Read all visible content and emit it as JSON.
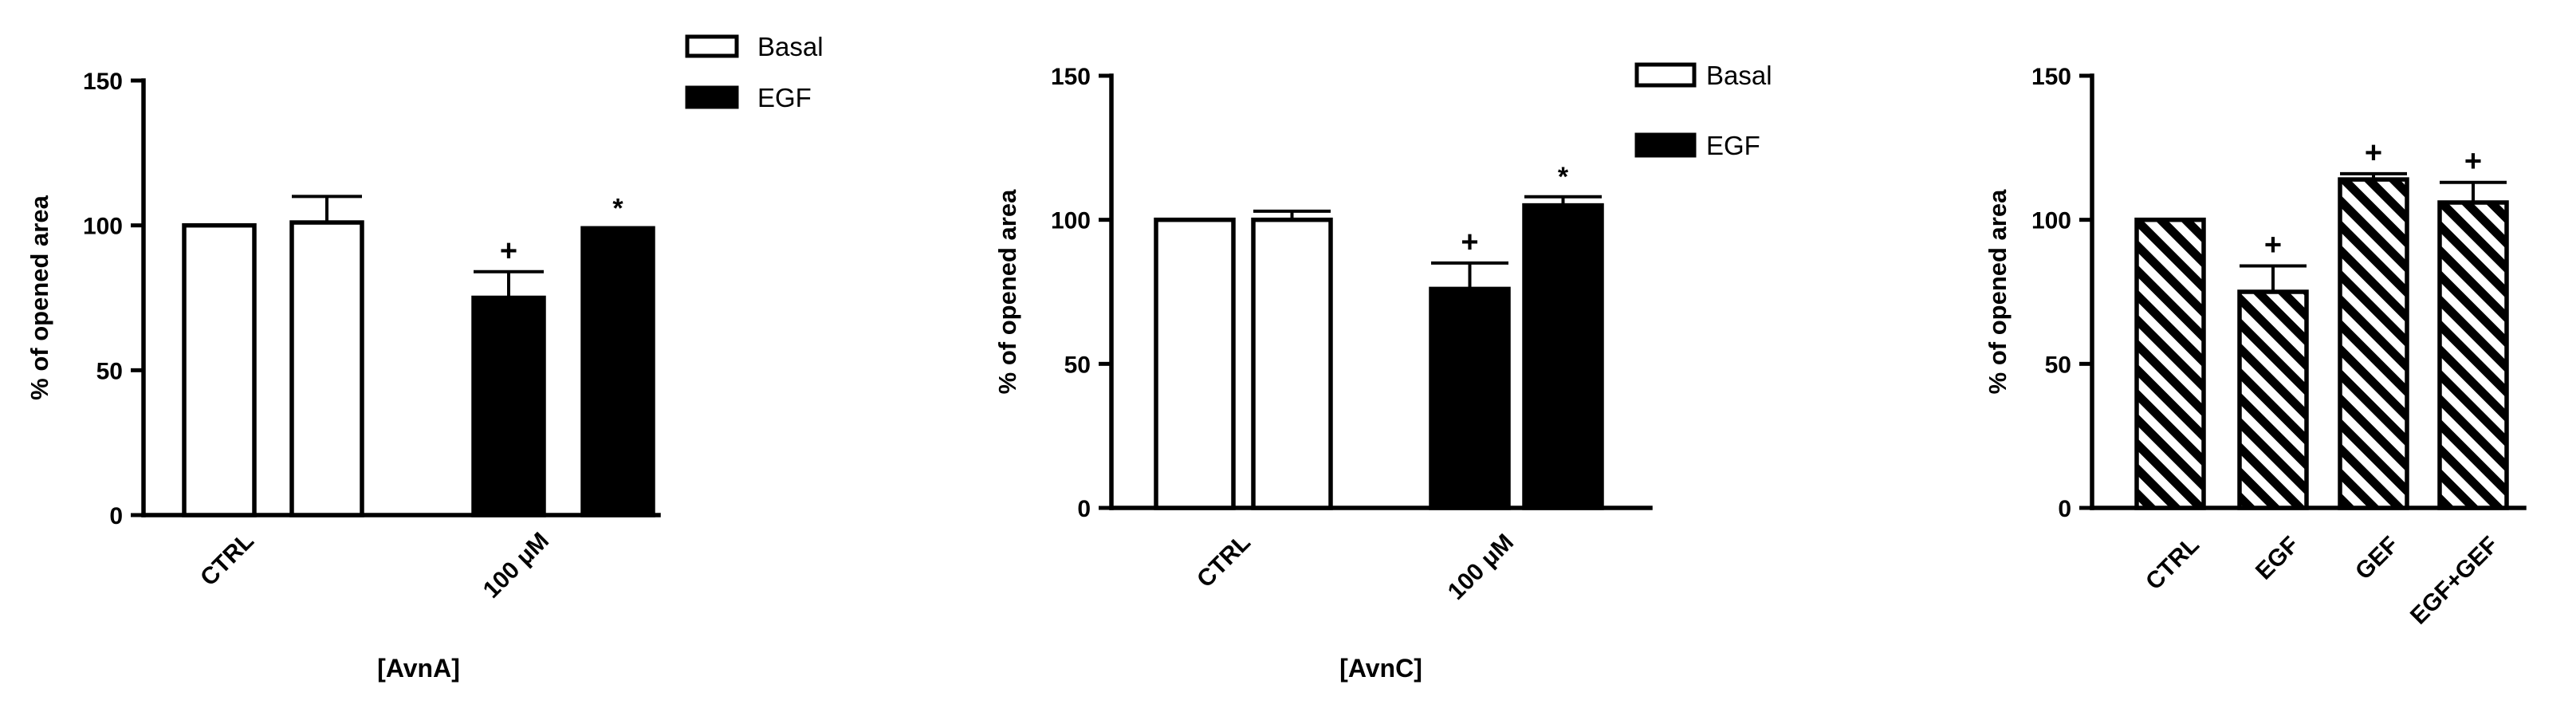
{
  "colors": {
    "fill_black": "#000000",
    "fill_white": "#ffffff"
  },
  "chart_data": [
    {
      "type": "bar",
      "ylabel": "% of opened area",
      "xlabel": "[AvnA]",
      "ylim": [
        0,
        150
      ],
      "yticks": [
        0,
        50,
        100,
        150
      ],
      "categories": [
        "CTRL",
        "100 μM"
      ],
      "series": [
        {
          "name": "Basal",
          "fill": "white",
          "values": [
            100,
            101
          ],
          "errors": [
            0,
            9
          ],
          "annotations": [
            "",
            ""
          ]
        },
        {
          "name": "EGF",
          "fill": "black",
          "values": [
            75,
            99
          ],
          "errors": [
            9,
            0.5
          ],
          "annotations": [
            "+",
            "*"
          ]
        }
      ],
      "legend": "top-right"
    },
    {
      "type": "bar",
      "ylabel": "% of opened area",
      "xlabel": "[AvnC]",
      "ylim": [
        0,
        150
      ],
      "yticks": [
        0,
        50,
        100,
        150
      ],
      "categories": [
        "CTRL",
        "100 μM"
      ],
      "series": [
        {
          "name": "Basal",
          "fill": "white",
          "values": [
            100,
            100
          ],
          "errors": [
            0,
            3
          ],
          "annotations": [
            "",
            ""
          ]
        },
        {
          "name": "EGF",
          "fill": "black",
          "values": [
            76,
            105
          ],
          "errors": [
            9,
            3
          ],
          "annotations": [
            "+",
            "*"
          ]
        }
      ],
      "legend": "top-right"
    },
    {
      "type": "bar",
      "ylabel": "% of opened area",
      "xlabel": "",
      "ylim": [
        0,
        150
      ],
      "yticks": [
        0,
        50,
        100,
        150
      ],
      "categories": [
        "CTRL",
        "EGF",
        "GEF",
        "EGF+GEF"
      ],
      "series": [
        {
          "name": "",
          "fill": "hatched",
          "values": [
            100,
            75,
            114,
            106
          ],
          "errors": [
            0,
            9,
            2,
            7
          ],
          "annotations": [
            "",
            "+",
            "+",
            "+"
          ]
        }
      ],
      "legend": "none"
    }
  ]
}
